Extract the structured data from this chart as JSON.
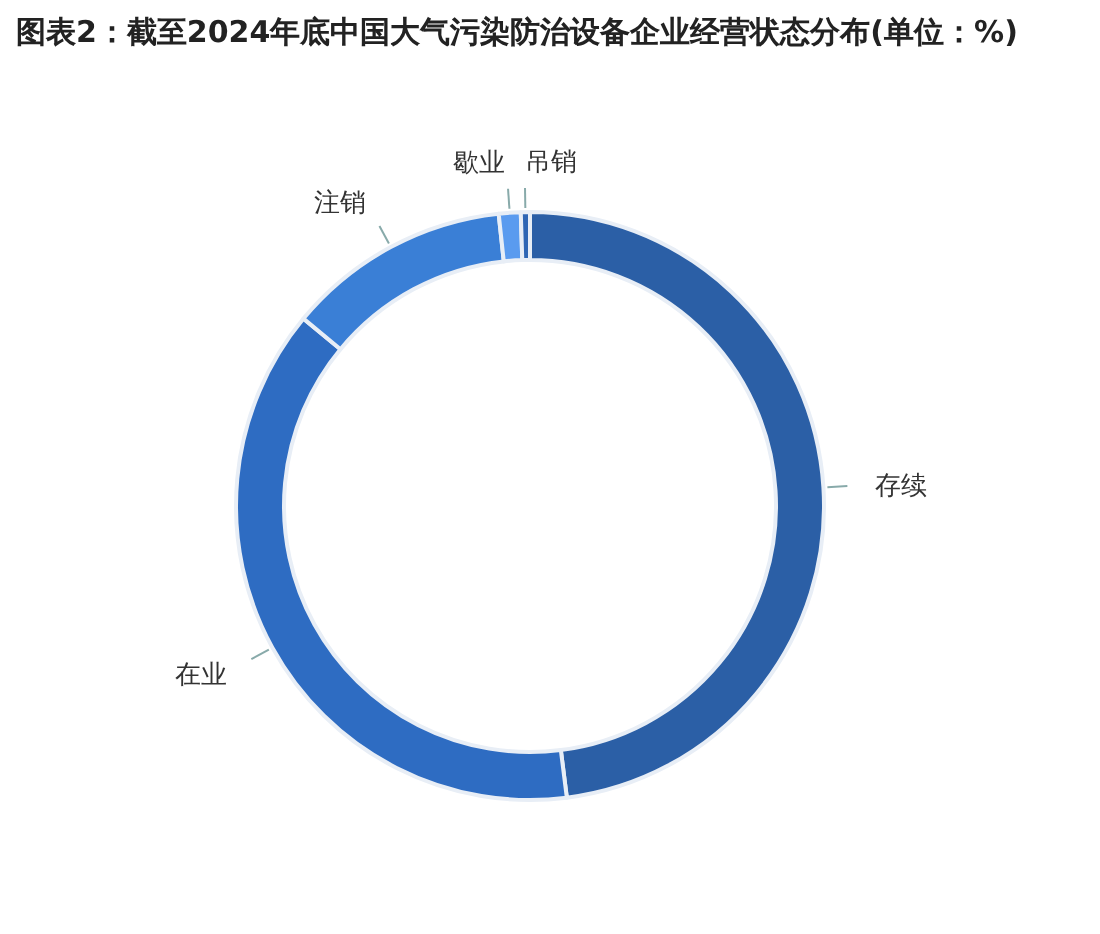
{
  "chart_data": {
    "type": "donut",
    "title": "图表2：截至2024年底中国大气污染防治设备企业经营状态分布(单位：%)",
    "categories": [
      "存续",
      "在业",
      "注销",
      "歇业",
      "吊销"
    ],
    "values": [
      48.0,
      38.0,
      12.3,
      1.2,
      0.5
    ],
    "colors": [
      "#2b5fa6",
      "#2e6cc2",
      "#3a7fd6",
      "#5a9bef",
      "#2f66b4"
    ],
    "legend": false
  }
}
